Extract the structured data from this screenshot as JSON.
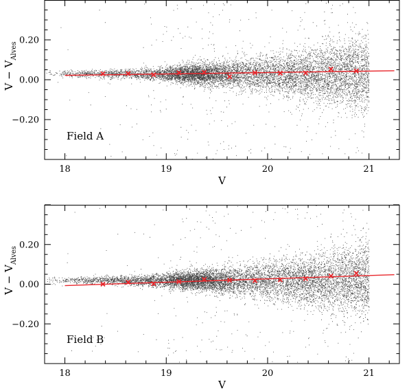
{
  "chart_data": [
    {
      "type": "scatter",
      "label": "Field A",
      "xlabel": "V",
      "ylabel_main": "V − V",
      "ylabel_sub": "Alves",
      "xlim": [
        17.8,
        21.3
      ],
      "ylim": [
        -0.4,
        0.4
      ],
      "xticks": [
        18,
        19,
        20,
        21
      ],
      "yticks": [
        0.2,
        0.0,
        -0.2
      ],
      "ytick_labels": [
        "0.20",
        "0.00",
        "−0.20"
      ],
      "fit_line": {
        "x": [
          18.0,
          21.25
        ],
        "y": [
          0.022,
          0.045
        ],
        "color": "#e8262b"
      },
      "binned_means": {
        "marker": "x",
        "color": "#e8262b",
        "x": [
          18.375,
          18.625,
          18.875,
          19.125,
          19.375,
          19.625,
          19.875,
          20.125,
          20.375,
          20.625,
          20.875
        ],
        "y": [
          0.03,
          0.031,
          0.025,
          0.035,
          0.037,
          0.015,
          0.035,
          0.033,
          0.034,
          0.053,
          0.044
        ]
      },
      "scatter": {
        "color": "#000000",
        "n_points": 9000,
        "center_offset": 0.03
      }
    },
    {
      "type": "scatter",
      "label": "Field B",
      "xlabel": "V",
      "ylabel_main": "V − V",
      "ylabel_sub": "Alves",
      "xlim": [
        17.8,
        21.3
      ],
      "ylim": [
        -0.4,
        0.4
      ],
      "xticks": [
        18,
        19,
        20,
        21
      ],
      "yticks": [
        0.2,
        0.0,
        -0.2
      ],
      "ytick_labels": [
        "0.20",
        "0.00",
        "−0.20"
      ],
      "fit_line": {
        "x": [
          18.0,
          21.25
        ],
        "y": [
          -0.007,
          0.048
        ],
        "color": "#e8262b"
      },
      "binned_means": {
        "marker": "x",
        "color": "#e8262b",
        "x": [
          18.375,
          18.625,
          18.875,
          19.125,
          19.375,
          19.625,
          19.875,
          20.125,
          20.375,
          20.625,
          20.875
        ],
        "y": [
          0.0,
          0.01,
          0.002,
          0.013,
          0.024,
          0.02,
          0.018,
          0.022,
          0.028,
          0.041,
          0.055
        ]
      },
      "scatter": {
        "color": "#000000",
        "n_points": 9000,
        "center_offset": 0.02
      }
    }
  ]
}
